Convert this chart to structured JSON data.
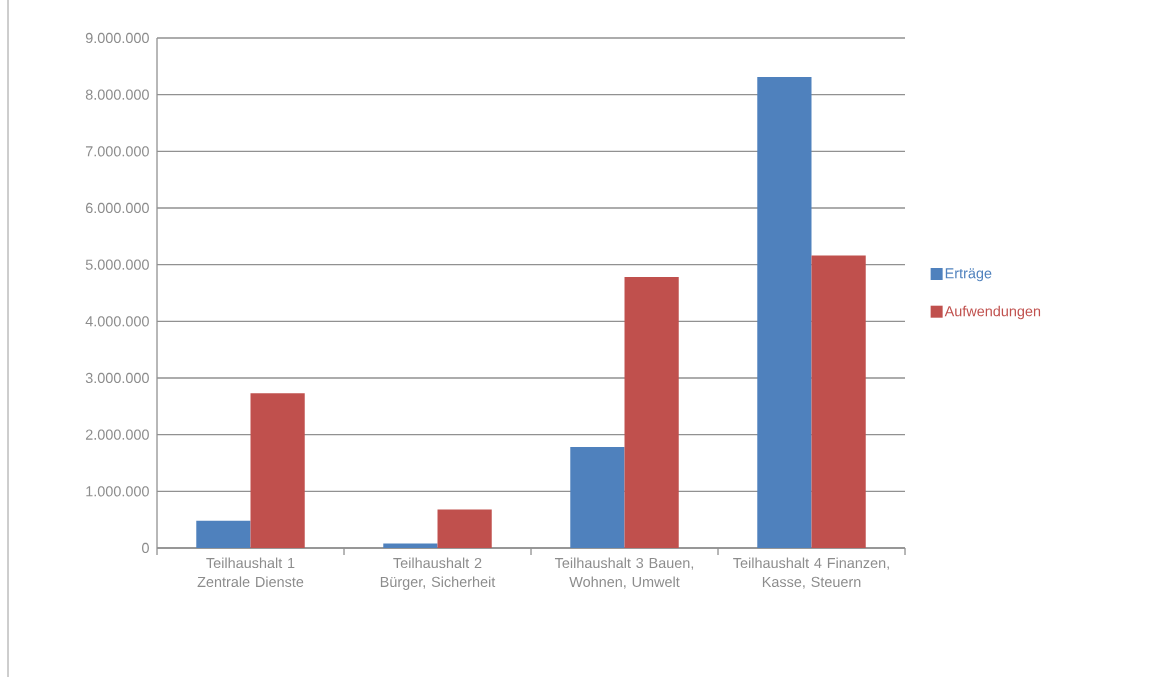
{
  "chart_data": {
    "type": "bar",
    "categories": [
      "Teilhaushalt 1 Zentrale Dienste",
      "Teilhaushalt 2 Bürger, Sicherheit",
      "Teilhaushalt 3 Bauen, Wohnen, Umwelt",
      "Teilhaushalt 4 Finanzen, Kasse, Steuern"
    ],
    "series": [
      {
        "name": "Erträge",
        "color": "#4f81bd",
        "values": [
          480000,
          80000,
          1780000,
          8310000
        ]
      },
      {
        "name": "Aufwendungen",
        "color": "#c0504d",
        "values": [
          2730000,
          680000,
          4780000,
          5160000
        ]
      }
    ],
    "ylim": [
      0,
      9000000
    ],
    "yticks": [
      0,
      {
        "value": 1000000,
        "label": "1.000.000"
      },
      {
        "value": 2000000,
        "label": "2.000.000"
      },
      {
        "value": 3000000,
        "label": "3.000.000"
      },
      {
        "value": 4000000,
        "label": "4.000.000"
      },
      {
        "value": 5000000,
        "label": "5.000.000"
      },
      {
        "value": 6000000,
        "label": "6.000.000"
      },
      {
        "value": 7000000,
        "label": "7.000.000"
      },
      {
        "value": 8000000,
        "label": "8.000.000"
      },
      {
        "value": 9000000,
        "label": "9.000.000"
      }
    ],
    "grid": "y",
    "legend": "right"
  }
}
